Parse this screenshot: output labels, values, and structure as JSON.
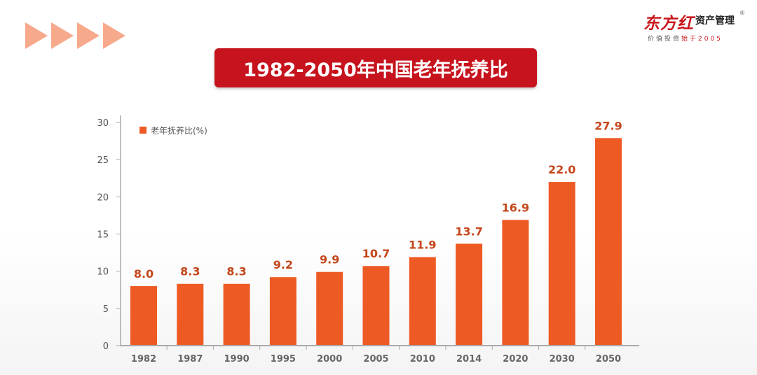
{
  "title": "1982-2050年中国老年抚养比",
  "logo": {
    "brand": "东方红",
    "sub": "资产管理",
    "reg": "®",
    "tagline_a": "价值投资",
    "tagline_b": "始于2005"
  },
  "colors": {
    "bar": "#ee5a24",
    "label": "#c4461b",
    "banner": "#c6131d",
    "arrows": "#f7a98c",
    "axis": "#aaaaaa"
  },
  "chart_data": {
    "type": "bar",
    "categories": [
      "1982",
      "1987",
      "1990",
      "1995",
      "2000",
      "2005",
      "2010",
      "2014",
      "2020",
      "2030",
      "2050"
    ],
    "series": [
      {
        "name": "老年抚养比(%)",
        "values": [
          8.0,
          8.3,
          8.3,
          9.2,
          9.9,
          10.7,
          11.9,
          13.7,
          16.9,
          22.0,
          27.9
        ]
      }
    ],
    "value_labels": [
      "8.0",
      "8.3",
      "8.3",
      "9.2",
      "9.9",
      "10.7",
      "11.9",
      "13.7",
      "16.9",
      "22.0",
      "27.9"
    ],
    "yticks": [
      0,
      5,
      10,
      15,
      20,
      25,
      30
    ],
    "ylim": [
      0,
      30
    ],
    "xlabel": "",
    "ylabel": "",
    "grid": false,
    "legend": "top-left"
  }
}
